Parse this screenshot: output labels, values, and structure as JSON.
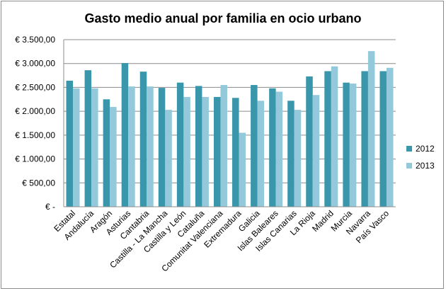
{
  "chart_data": {
    "type": "bar",
    "title": "Gasto medio anual por familia en ocio urbano",
    "xlabel": "",
    "ylabel": "",
    "categories": [
      "Estatal",
      "Andalucía",
      "Aragón",
      "Asturias",
      "Cantabria",
      "Castilla - La Mancha",
      "Castilla y León",
      "Cataluña",
      "Comunitat Valenciana",
      "Extremadura",
      "Galicia",
      "Islas Baleares",
      "Islas Canarias",
      "La Rioja",
      "Madrid",
      "Murcia",
      "Navarra",
      "País Vasco"
    ],
    "series": [
      {
        "name": "2012",
        "color": "#3a96aa",
        "values": [
          2640,
          2860,
          2250,
          3010,
          2830,
          2490,
          2600,
          2530,
          2300,
          2280,
          2550,
          2480,
          2220,
          2730,
          2840,
          2600,
          2840,
          2840
        ]
      },
      {
        "name": "2013",
        "color": "#93c9da",
        "values": [
          2480,
          2480,
          2090,
          2520,
          2520,
          2030,
          2300,
          2300,
          2550,
          1550,
          2220,
          2410,
          2030,
          2340,
          2940,
          2580,
          3260,
          2910
        ]
      }
    ],
    "ylim": [
      0,
      3500
    ],
    "yticks": [
      {
        "value": 0,
        "label": "€ -"
      },
      {
        "value": 500,
        "label": "€ 500,00"
      },
      {
        "value": 1000,
        "label": "€ 1.000,00"
      },
      {
        "value": 1500,
        "label": "€ 1.500,00"
      },
      {
        "value": 2000,
        "label": "€ 2.000,00"
      },
      {
        "value": 2500,
        "label": "€ 2.500,00"
      },
      {
        "value": 3000,
        "label": "€ 3.000,00"
      },
      {
        "value": 3500,
        "label": "€ 3.500,00"
      }
    ],
    "grid": true,
    "legend_position": "right"
  }
}
